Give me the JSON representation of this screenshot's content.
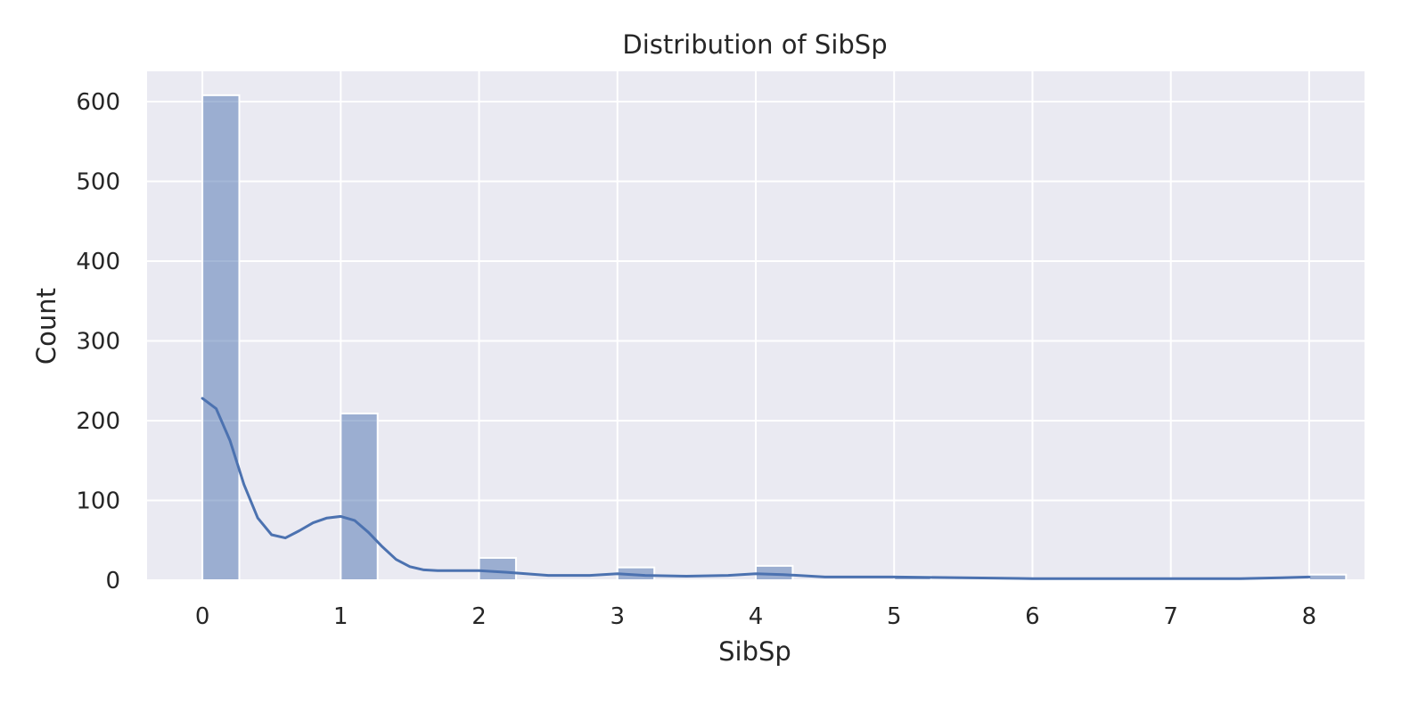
{
  "chart_data": {
    "type": "bar",
    "subtype": "histogram-with-kde",
    "title": "Distribution of SibSp",
    "xlabel": "SibSp",
    "ylabel": "Count",
    "xlim": [
      -0.4,
      8.4
    ],
    "ylim": [
      0,
      638
    ],
    "xticks": [
      "0",
      "1",
      "2",
      "3",
      "4",
      "5",
      "6",
      "7",
      "8"
    ],
    "yticks": [
      "0",
      "100",
      "200",
      "300",
      "400",
      "500",
      "600"
    ],
    "grid": true,
    "bin_width": 0.2667,
    "bars": [
      {
        "x": 0,
        "value": 608
      },
      {
        "x": 1,
        "value": 209
      },
      {
        "x": 2,
        "value": 28
      },
      {
        "x": 3,
        "value": 16
      },
      {
        "x": 4,
        "value": 18
      },
      {
        "x": 5,
        "value": 5
      },
      {
        "x": 8,
        "value": 7
      }
    ],
    "kde": {
      "x": [
        0,
        0.1,
        0.2,
        0.3,
        0.4,
        0.5,
        0.6,
        0.7,
        0.8,
        0.9,
        1.0,
        1.1,
        1.2,
        1.3,
        1.4,
        1.5,
        1.6,
        1.7,
        1.8,
        1.9,
        2.0,
        2.2,
        2.5,
        2.8,
        3.0,
        3.2,
        3.5,
        3.8,
        4.0,
        4.2,
        4.5,
        5.0,
        5.5,
        6.0,
        6.5,
        7.0,
        7.5,
        7.8,
        8.0
      ],
      "y": [
        228,
        215,
        175,
        120,
        78,
        57,
        53,
        62,
        72,
        78,
        80,
        75,
        60,
        42,
        26,
        17,
        13,
        12,
        12,
        12,
        12,
        10,
        6,
        6,
        8,
        6,
        5,
        6,
        8,
        7,
        4,
        4,
        3,
        2,
        2,
        2,
        2,
        3,
        4
      ]
    },
    "colors": {
      "bar": "#4c72b0",
      "line": "#4c72b0",
      "plot_bg": "#eaeaf2",
      "grid": "#ffffff"
    }
  }
}
